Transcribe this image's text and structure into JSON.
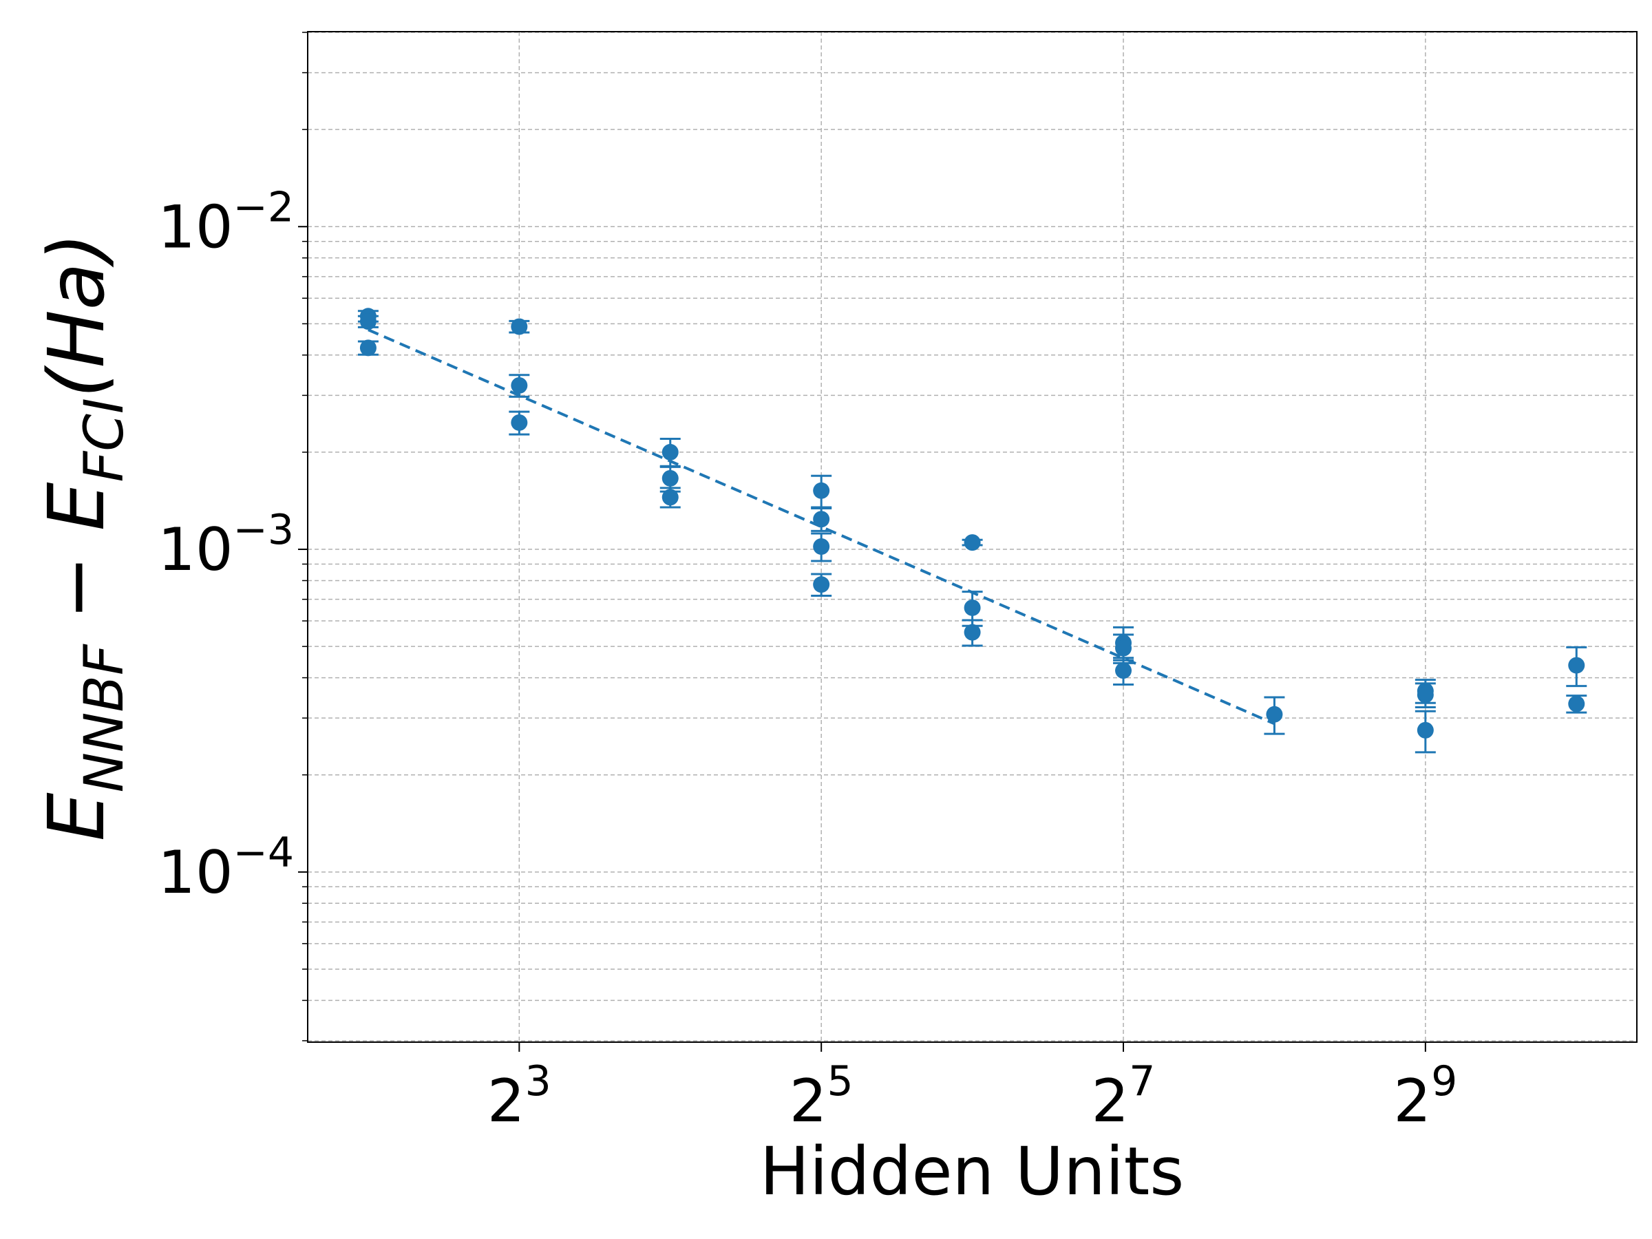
{
  "chart_data": {
    "type": "scatter",
    "x_label": "Hidden Units",
    "y_label": [
      {
        "text": "E"
      },
      {
        "text": "NNBF",
        "sub": true
      },
      {
        "text": " − E"
      },
      {
        "text": "FCI",
        "sub": true
      },
      {
        "text": "(Ha)"
      }
    ],
    "color": "#1f77b4",
    "x_log_base": 2,
    "y_log_base": 10,
    "xlim": [
      3.03,
      1351
    ],
    "ylim": [
      2.97e-05,
      0.0402
    ],
    "xticks": [
      {
        "value": 8,
        "base": "2",
        "exponent": "3"
      },
      {
        "value": 32,
        "base": "2",
        "exponent": "5"
      },
      {
        "value": 128,
        "base": "2",
        "exponent": "7"
      },
      {
        "value": 512,
        "base": "2",
        "exponent": "9"
      }
    ],
    "yticks": [
      {
        "value": 0.0001,
        "base": "10",
        "exponent": "−4"
      },
      {
        "value": 0.001,
        "base": "10",
        "exponent": "−3"
      },
      {
        "value": 0.01,
        "base": "10",
        "exponent": "−2"
      }
    ],
    "yminor": [
      3e-05,
      4e-05,
      5e-05,
      6e-05,
      7e-05,
      8e-05,
      9e-05,
      0.0002,
      0.0003,
      0.0004,
      0.0005,
      0.0006,
      0.0007,
      0.0008,
      0.0009,
      0.002,
      0.003,
      0.004,
      0.005,
      0.006,
      0.007,
      0.008,
      0.009,
      0.02,
      0.03,
      0.04
    ],
    "grid": true,
    "x": [
      4,
      4,
      4,
      8,
      8,
      8,
      16,
      16,
      16,
      32,
      32,
      32,
      32,
      64,
      64,
      64,
      128,
      128,
      128,
      256,
      512,
      512,
      512,
      1024,
      1024
    ],
    "values": [
      0.00528,
      0.00508,
      0.00421,
      0.0049,
      0.00322,
      0.00247,
      0.002,
      0.00166,
      0.00145,
      0.00152,
      0.00124,
      0.00102,
      0.000778,
      0.00105,
      0.000659,
      0.000553,
      0.000513,
      0.000494,
      0.000421,
      0.000308,
      0.000364,
      0.000354,
      0.000275,
      0.000437,
      0.000332
    ],
    "errors": [
      0.0002,
      0.0002,
      0.0002,
      0.0002,
      0.00025,
      0.0002,
      0.0002,
      0.00015,
      0.0001,
      0.00017,
      0.0001,
      0.0001,
      6e-05,
      2e-05,
      8e-05,
      5e-05,
      6e-05,
      5e-05,
      4e-05,
      4e-05,
      3e-05,
      3e-05,
      4e-05,
      6e-05,
      2e-05
    ],
    "fit": {
      "x": [
        4,
        256
      ],
      "values": [
        0.00479,
        0.000288
      ],
      "dashed": true
    }
  }
}
